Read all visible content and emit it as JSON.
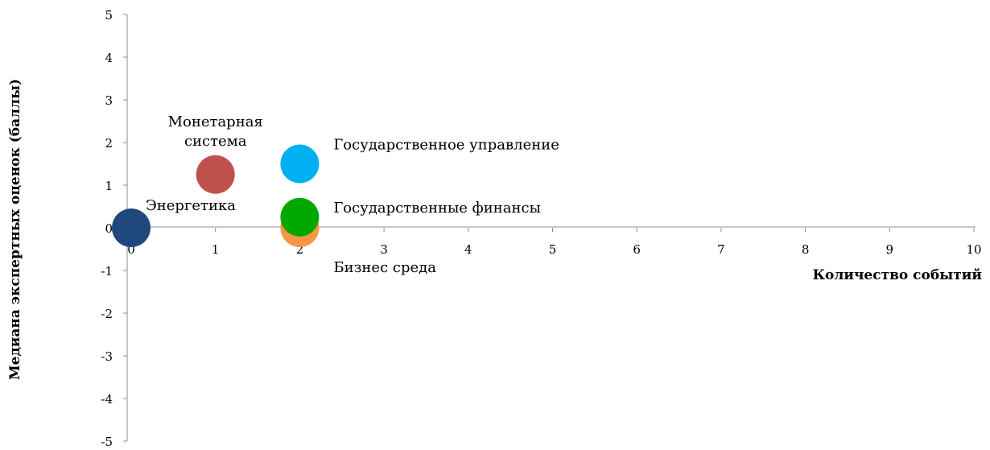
{
  "chart_data": {
    "type": "scatter",
    "title": "",
    "xlabel": "Количество событий",
    "ylabel": "Медиана экспертных оценок (баллы)",
    "xlim": [
      0,
      10
    ],
    "ylim": [
      -5,
      5
    ],
    "x_ticks": [
      "0",
      "1",
      "2",
      "3",
      "4",
      "5",
      "6",
      "7",
      "8",
      "9",
      "10"
    ],
    "y_ticks": [
      "-5",
      "-4",
      "-3",
      "-2",
      "-1",
      "0",
      "1",
      "2",
      "3",
      "4",
      "5"
    ],
    "grid": false,
    "legend": "none",
    "points": [
      {
        "label": "Бизнес среда",
        "x": 2,
        "y": 0,
        "color": "#f79646"
      },
      {
        "label": "Энергетика",
        "x": 0,
        "y": 0,
        "color": "#1f497d"
      },
      {
        "label": "Монетарная система",
        "label_lines": [
          "Монетарная",
          "система"
        ],
        "x": 1,
        "y": 1.25,
        "color": "#c0504d"
      },
      {
        "label": "Государственное управление",
        "x": 2,
        "y": 1.5,
        "color": "#00b0f0"
      },
      {
        "label": "Государственные финансы",
        "x": 2,
        "y": 0.25,
        "color": "#00a800"
      }
    ]
  }
}
